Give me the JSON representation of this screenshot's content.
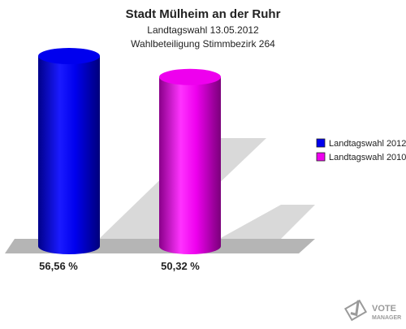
{
  "chart_data": {
    "type": "bar",
    "title": "Stadt Mülheim an der Ruhr",
    "subtitle_1": "Landtagswahl 13.05.2012",
    "subtitle_2": "Wahlbeteiligung Stimmbezirk 264",
    "categories": [
      "Landtagswahl 2012",
      "Landtagswahl 2010"
    ],
    "values": [
      56.56,
      50.32
    ],
    "value_labels": [
      "56,56 %",
      "50,32 %"
    ],
    "colors": [
      "#0000ee",
      "#ee00ee"
    ],
    "ylim": [
      0,
      58
    ],
    "legend_position": "right"
  },
  "logo": {
    "line1": "VOTE",
    "line2": "MANAGER"
  }
}
